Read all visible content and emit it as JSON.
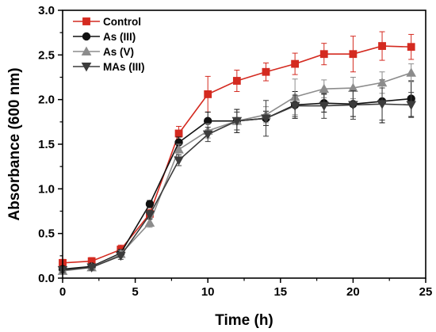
{
  "chart_data": {
    "type": "line",
    "xlabel": "Time (h)",
    "ylabel": "Absorbance (600 nm)",
    "xlim": [
      0,
      25
    ],
    "ylim": [
      0.0,
      3.0
    ],
    "xticks": [
      0,
      5,
      10,
      15,
      20,
      25
    ],
    "xtick_labels": [
      "0",
      "5",
      "10",
      "15",
      "20",
      "25"
    ],
    "yticks": [
      0.0,
      0.5,
      1.0,
      1.5,
      2.0,
      2.5,
      3.0
    ],
    "ytick_labels": [
      "0.0",
      "0.5",
      "1.0",
      "1.5",
      "2.0",
      "2.5",
      "3.0"
    ],
    "grid": false,
    "legend_position": "top-left",
    "series": [
      {
        "name": "Control",
        "color": "#d42a20",
        "marker": "square",
        "x": [
          0,
          2,
          4,
          6,
          8,
          10,
          12,
          14,
          16,
          18,
          20,
          22,
          24
        ],
        "y": [
          0.17,
          0.19,
          0.32,
          0.72,
          1.62,
          2.06,
          2.21,
          2.31,
          2.4,
          2.51,
          2.51,
          2.6,
          2.59
        ],
        "err": [
          0.04,
          0.04,
          0.05,
          0.05,
          0.08,
          0.2,
          0.12,
          0.1,
          0.12,
          0.12,
          0.2,
          0.16,
          0.14
        ]
      },
      {
        "name": "As (III)",
        "color": "#111111",
        "marker": "circle",
        "x": [
          0,
          2,
          4,
          6,
          8,
          10,
          12,
          14,
          16,
          18,
          20,
          22,
          24
        ],
        "y": [
          0.1,
          0.13,
          0.28,
          0.83,
          1.52,
          1.76,
          1.76,
          1.79,
          1.94,
          1.96,
          1.95,
          1.98,
          2.01
        ],
        "err": [
          0.03,
          0.03,
          0.04,
          0.04,
          0.06,
          0.1,
          0.13,
          0.08,
          0.15,
          0.1,
          0.14,
          0.24,
          0.2
        ]
      },
      {
        "name": "As (V)",
        "color": "#8c8c8c",
        "marker": "triangle-up",
        "x": [
          0,
          2,
          4,
          6,
          8,
          10,
          12,
          14,
          16,
          18,
          20,
          22,
          24
        ],
        "y": [
          0.08,
          0.12,
          0.27,
          0.62,
          1.44,
          1.65,
          1.76,
          1.83,
          2.03,
          2.12,
          2.13,
          2.19,
          2.3
        ],
        "err": [
          0.03,
          0.03,
          0.04,
          0.05,
          0.06,
          0.08,
          0.1,
          0.09,
          0.2,
          0.1,
          0.12,
          0.12,
          0.1
        ]
      },
      {
        "name": "MAs (III)",
        "color": "#3c3c3c",
        "marker": "triangle-down",
        "x": [
          0,
          2,
          4,
          6,
          8,
          10,
          12,
          14,
          16,
          18,
          20,
          22,
          24
        ],
        "y": [
          0.09,
          0.12,
          0.25,
          0.71,
          1.32,
          1.61,
          1.76,
          1.79,
          1.93,
          1.93,
          1.94,
          1.95,
          1.94
        ],
        "err": [
          0.03,
          0.03,
          0.04,
          0.05,
          0.06,
          0.08,
          0.1,
          0.2,
          0.12,
          0.14,
          0.16,
          0.18,
          0.14
        ]
      }
    ]
  }
}
